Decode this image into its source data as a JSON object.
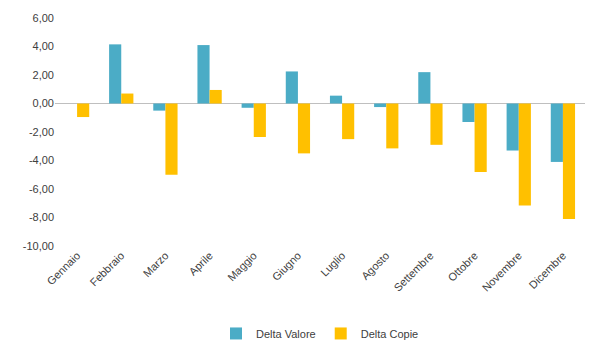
{
  "chart_data": {
    "type": "bar",
    "categories": [
      "Gennaio",
      "Febbraio",
      "Marzo",
      "Aprile",
      "Maggio",
      "Giugno",
      "Luglio",
      "Agosto",
      "Settembre",
      "Ottobre",
      "Novembre",
      "Dicembre"
    ],
    "series": [
      {
        "name": "Delta Valore",
        "color": "#4bacc6",
        "values": [
          0,
          4.15,
          -0.5,
          4.1,
          -0.3,
          2.25,
          0.55,
          -0.25,
          2.2,
          -1.3,
          -3.3,
          -4.1
        ]
      },
      {
        "name": "Delta Copie",
        "color": "#ffc000",
        "values": [
          -0.95,
          0.7,
          -5.0,
          0.95,
          -2.35,
          -3.5,
          -2.5,
          -3.15,
          -2.9,
          -4.8,
          -7.15,
          -8.1
        ]
      }
    ],
    "ylim": [
      -10,
      6
    ],
    "yticks": [
      {
        "value": -10,
        "label": "-10,00"
      },
      {
        "value": -8,
        "label": "-8,00"
      },
      {
        "value": -6,
        "label": "-6,00"
      },
      {
        "value": -4,
        "label": "-4,00"
      },
      {
        "value": -2,
        "label": "-2,00"
      },
      {
        "value": 0,
        "label": "0,00"
      },
      {
        "value": 2,
        "label": "2,00"
      },
      {
        "value": 4,
        "label": "4,00"
      },
      {
        "value": 6,
        "label": "6,00"
      }
    ],
    "grid": false,
    "legend": "bottom"
  }
}
